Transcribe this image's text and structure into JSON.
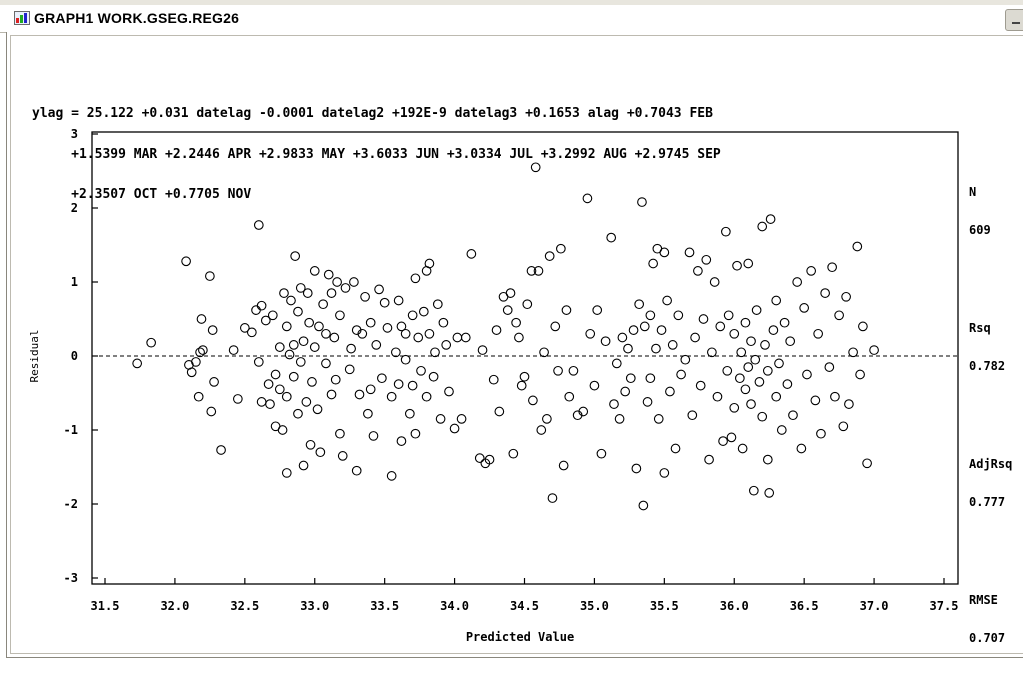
{
  "window": {
    "title": "GRAPH1  WORK.GSEG.REG26",
    "app_icon": "sas-graph-icon",
    "minimize_icon": "minimize-icon"
  },
  "equation_lines": [
    "ylag = 25.122 +0.031 datelag -0.0001 datelag2 +192E-9 datelag3 +0.1653 alag +0.7043 FEB",
    "     +1.5399 MAR +2.2446 APR +2.9833 MAY +3.6033 JUN +3.0334 JUL +3.2992 AUG +2.9745 SEP",
    "     +2.3507 OCT +0.7705 NOV"
  ],
  "stats": {
    "n_label": "N",
    "n_value": "609",
    "rsq_label": "Rsq",
    "rsq_value": "0.782",
    "adjrsq_label": "AdjRsq",
    "adjrsq_value": "0.777",
    "rmse_label": "RMSE",
    "rmse_value": "0.707"
  },
  "chart_data": {
    "type": "scatter",
    "xlabel": "Predicted Value",
    "ylabel": "Residual",
    "xlim": [
      31.5,
      37.5
    ],
    "ylim": [
      -3,
      3
    ],
    "xticks": [
      "31.5",
      "32.0",
      "32.5",
      "33.0",
      "33.5",
      "34.0",
      "34.5",
      "35.0",
      "35.5",
      "36.0",
      "36.5",
      "37.0",
      "37.5"
    ],
    "yticks": [
      "-3",
      "-2",
      "-1",
      "0",
      "1",
      "2",
      "3"
    ],
    "reference_line": 0,
    "grid": false,
    "marker": "open-circle",
    "points": [
      [
        31.73,
        -0.1
      ],
      [
        31.83,
        0.18
      ],
      [
        32.08,
        1.28
      ],
      [
        32.1,
        -0.12
      ],
      [
        32.12,
        -0.22
      ],
      [
        32.15,
        -0.08
      ],
      [
        32.18,
        0.05
      ],
      [
        32.2,
        0.08
      ],
      [
        32.17,
        -0.55
      ],
      [
        32.19,
        0.5
      ],
      [
        32.25,
        1.08
      ],
      [
        32.27,
        0.35
      ],
      [
        32.26,
        -0.75
      ],
      [
        32.28,
        -0.35
      ],
      [
        32.33,
        -1.27
      ],
      [
        32.42,
        0.08
      ],
      [
        32.45,
        -0.58
      ],
      [
        32.5,
        0.38
      ],
      [
        32.55,
        0.32
      ],
      [
        32.58,
        0.62
      ],
      [
        32.6,
        -0.08
      ],
      [
        32.6,
        1.77
      ],
      [
        32.62,
        0.68
      ],
      [
        32.62,
        -0.62
      ],
      [
        32.65,
        0.48
      ],
      [
        32.67,
        -0.38
      ],
      [
        32.68,
        -0.65
      ],
      [
        32.7,
        0.55
      ],
      [
        32.72,
        -0.95
      ],
      [
        32.72,
        -0.25
      ],
      [
        32.75,
        0.12
      ],
      [
        32.75,
        -0.45
      ],
      [
        32.77,
        -1.0
      ],
      [
        32.78,
        0.85
      ],
      [
        32.8,
        0.4
      ],
      [
        32.8,
        -0.55
      ],
      [
        32.8,
        -1.58
      ],
      [
        32.82,
        0.02
      ],
      [
        32.83,
        0.75
      ],
      [
        32.85,
        -0.28
      ],
      [
        32.85,
        0.15
      ],
      [
        32.86,
        1.35
      ],
      [
        32.88,
        -0.78
      ],
      [
        32.88,
        0.6
      ],
      [
        32.9,
        0.92
      ],
      [
        32.9,
        -0.08
      ],
      [
        32.92,
        0.2
      ],
      [
        32.92,
        -1.48
      ],
      [
        32.94,
        -0.62
      ],
      [
        32.95,
        0.85
      ],
      [
        32.96,
        0.45
      ],
      [
        32.97,
        -1.2
      ],
      [
        32.98,
        -0.35
      ],
      [
        33.0,
        0.12
      ],
      [
        33.0,
        1.15
      ],
      [
        33.02,
        -0.72
      ],
      [
        33.03,
        0.4
      ],
      [
        33.04,
        -1.3
      ],
      [
        33.06,
        0.7
      ],
      [
        33.08,
        -0.1
      ],
      [
        33.08,
        0.3
      ],
      [
        33.1,
        1.1
      ],
      [
        33.12,
        -0.52
      ],
      [
        33.12,
        0.85
      ],
      [
        33.14,
        0.25
      ],
      [
        33.15,
        -0.32
      ],
      [
        33.16,
        1.0
      ],
      [
        33.18,
        0.55
      ],
      [
        33.18,
        -1.05
      ],
      [
        33.2,
        -1.35
      ],
      [
        33.22,
        0.92
      ],
      [
        33.25,
        -0.18
      ],
      [
        33.26,
        0.1
      ],
      [
        33.28,
        1.0
      ],
      [
        33.3,
        0.35
      ],
      [
        33.3,
        -1.55
      ],
      [
        33.32,
        -0.52
      ],
      [
        33.34,
        0.3
      ],
      [
        33.36,
        0.8
      ],
      [
        33.38,
        -0.78
      ],
      [
        33.4,
        -0.45
      ],
      [
        33.4,
        0.45
      ],
      [
        33.42,
        -1.08
      ],
      [
        33.44,
        0.15
      ],
      [
        33.46,
        0.9
      ],
      [
        33.48,
        -0.3
      ],
      [
        33.5,
        0.72
      ],
      [
        33.52,
        0.38
      ],
      [
        33.55,
        -0.55
      ],
      [
        33.55,
        -1.62
      ],
      [
        33.58,
        0.05
      ],
      [
        33.6,
        -0.38
      ],
      [
        33.6,
        0.75
      ],
      [
        33.62,
        0.4
      ],
      [
        33.62,
        -1.15
      ],
      [
        33.65,
        -0.05
      ],
      [
        33.65,
        0.3
      ],
      [
        33.68,
        -0.78
      ],
      [
        33.7,
        0.55
      ],
      [
        33.7,
        -0.4
      ],
      [
        33.72,
        1.05
      ],
      [
        33.72,
        -1.05
      ],
      [
        33.74,
        0.25
      ],
      [
        33.76,
        -0.2
      ],
      [
        33.78,
        0.6
      ],
      [
        33.8,
        1.15
      ],
      [
        33.8,
        -0.55
      ],
      [
        33.82,
        0.3
      ],
      [
        33.82,
        1.25
      ],
      [
        33.85,
        -0.28
      ],
      [
        33.86,
        0.05
      ],
      [
        33.88,
        0.7
      ],
      [
        33.9,
        -0.85
      ],
      [
        33.92,
        0.45
      ],
      [
        33.94,
        0.15
      ],
      [
        33.96,
        -0.48
      ],
      [
        34.0,
        -0.98
      ],
      [
        34.02,
        0.25
      ],
      [
        34.05,
        -0.85
      ],
      [
        34.08,
        0.25
      ],
      [
        34.12,
        1.38
      ],
      [
        34.18,
        -1.38
      ],
      [
        34.2,
        0.08
      ],
      [
        34.22,
        -1.45
      ],
      [
        34.25,
        -1.4
      ],
      [
        34.28,
        -0.32
      ],
      [
        34.3,
        0.35
      ],
      [
        34.32,
        -0.75
      ],
      [
        34.35,
        0.8
      ],
      [
        34.38,
        0.62
      ],
      [
        34.4,
        0.85
      ],
      [
        34.42,
        -1.32
      ],
      [
        34.44,
        0.45
      ],
      [
        34.46,
        0.25
      ],
      [
        34.48,
        -0.4
      ],
      [
        34.5,
        -0.28
      ],
      [
        34.52,
        0.7
      ],
      [
        34.55,
        1.15
      ],
      [
        34.56,
        -0.6
      ],
      [
        34.58,
        2.55
      ],
      [
        34.6,
        1.15
      ],
      [
        34.62,
        -1.0
      ],
      [
        34.64,
        0.05
      ],
      [
        34.66,
        -0.85
      ],
      [
        34.68,
        1.35
      ],
      [
        34.7,
        -1.92
      ],
      [
        34.72,
        0.4
      ],
      [
        34.74,
        -0.2
      ],
      [
        34.76,
        1.45
      ],
      [
        34.78,
        -1.48
      ],
      [
        34.8,
        0.62
      ],
      [
        34.82,
        -0.55
      ],
      [
        34.85,
        -0.2
      ],
      [
        34.88,
        -0.8
      ],
      [
        34.92,
        -0.75
      ],
      [
        34.95,
        2.13
      ],
      [
        34.97,
        0.3
      ],
      [
        35.0,
        -0.4
      ],
      [
        35.02,
        0.62
      ],
      [
        35.05,
        -1.32
      ],
      [
        35.08,
        0.2
      ],
      [
        35.12,
        1.6
      ],
      [
        35.14,
        -0.65
      ],
      [
        35.16,
        -0.1
      ],
      [
        35.18,
        -0.85
      ],
      [
        35.2,
        0.25
      ],
      [
        35.22,
        -0.48
      ],
      [
        35.24,
        0.1
      ],
      [
        35.26,
        -0.3
      ],
      [
        35.28,
        0.35
      ],
      [
        35.3,
        -1.52
      ],
      [
        35.32,
        0.7
      ],
      [
        35.34,
        2.08
      ],
      [
        35.35,
        -2.02
      ],
      [
        35.36,
        0.4
      ],
      [
        35.38,
        -0.62
      ],
      [
        35.4,
        0.55
      ],
      [
        35.4,
        -0.3
      ],
      [
        35.42,
        1.25
      ],
      [
        35.44,
        0.1
      ],
      [
        35.45,
        1.45
      ],
      [
        35.46,
        -0.85
      ],
      [
        35.48,
        0.35
      ],
      [
        35.5,
        1.4
      ],
      [
        35.5,
        -1.58
      ],
      [
        35.52,
        0.75
      ],
      [
        35.54,
        -0.48
      ],
      [
        35.56,
        0.15
      ],
      [
        35.58,
        -1.25
      ],
      [
        35.6,
        0.55
      ],
      [
        35.62,
        -0.25
      ],
      [
        35.65,
        -0.05
      ],
      [
        35.68,
        1.4
      ],
      [
        35.7,
        -0.8
      ],
      [
        35.72,
        0.25
      ],
      [
        35.74,
        1.15
      ],
      [
        35.76,
        -0.4
      ],
      [
        35.78,
        0.5
      ],
      [
        35.8,
        1.3
      ],
      [
        35.82,
        -1.4
      ],
      [
        35.84,
        0.05
      ],
      [
        35.86,
        1.0
      ],
      [
        35.88,
        -0.55
      ],
      [
        35.9,
        0.4
      ],
      [
        35.92,
        -1.15
      ],
      [
        35.94,
        1.68
      ],
      [
        35.95,
        -0.2
      ],
      [
        35.96,
        0.55
      ],
      [
        35.98,
        -1.1
      ],
      [
        36.0,
        0.3
      ],
      [
        36.0,
        -0.7
      ],
      [
        36.02,
        1.22
      ],
      [
        36.04,
        -0.3
      ],
      [
        36.05,
        0.05
      ],
      [
        36.06,
        -1.25
      ],
      [
        36.08,
        0.45
      ],
      [
        36.08,
        -0.45
      ],
      [
        36.1,
        -0.15
      ],
      [
        36.1,
        1.25
      ],
      [
        36.12,
        -0.65
      ],
      [
        36.12,
        0.2
      ],
      [
        36.14,
        -1.82
      ],
      [
        36.15,
        -0.05
      ],
      [
        36.16,
        0.62
      ],
      [
        36.18,
        -0.35
      ],
      [
        36.2,
        1.75
      ],
      [
        36.2,
        -0.82
      ],
      [
        36.22,
        0.15
      ],
      [
        36.24,
        -1.4
      ],
      [
        36.24,
        -0.2
      ],
      [
        36.25,
        -1.85
      ],
      [
        36.26,
        1.85
      ],
      [
        36.28,
        0.35
      ],
      [
        36.3,
        -0.55
      ],
      [
        36.3,
        0.75
      ],
      [
        36.32,
        -0.1
      ],
      [
        36.34,
        -1.0
      ],
      [
        36.36,
        0.45
      ],
      [
        36.38,
        -0.38
      ],
      [
        36.4,
        0.2
      ],
      [
        36.42,
        -0.8
      ],
      [
        36.45,
        1.0
      ],
      [
        36.48,
        -1.25
      ],
      [
        36.5,
        0.65
      ],
      [
        36.52,
        -0.25
      ],
      [
        36.55,
        1.15
      ],
      [
        36.58,
        -0.6
      ],
      [
        36.6,
        0.3
      ],
      [
        36.62,
        -1.05
      ],
      [
        36.65,
        0.85
      ],
      [
        36.68,
        -0.15
      ],
      [
        36.7,
        1.2
      ],
      [
        36.72,
        -0.55
      ],
      [
        36.75,
        0.55
      ],
      [
        36.78,
        -0.95
      ],
      [
        36.8,
        0.8
      ],
      [
        36.82,
        -0.65
      ],
      [
        36.85,
        0.05
      ],
      [
        36.88,
        1.48
      ],
      [
        36.9,
        -0.25
      ],
      [
        36.92,
        0.4
      ],
      [
        36.95,
        -1.45
      ],
      [
        37.0,
        0.08
      ]
    ]
  }
}
